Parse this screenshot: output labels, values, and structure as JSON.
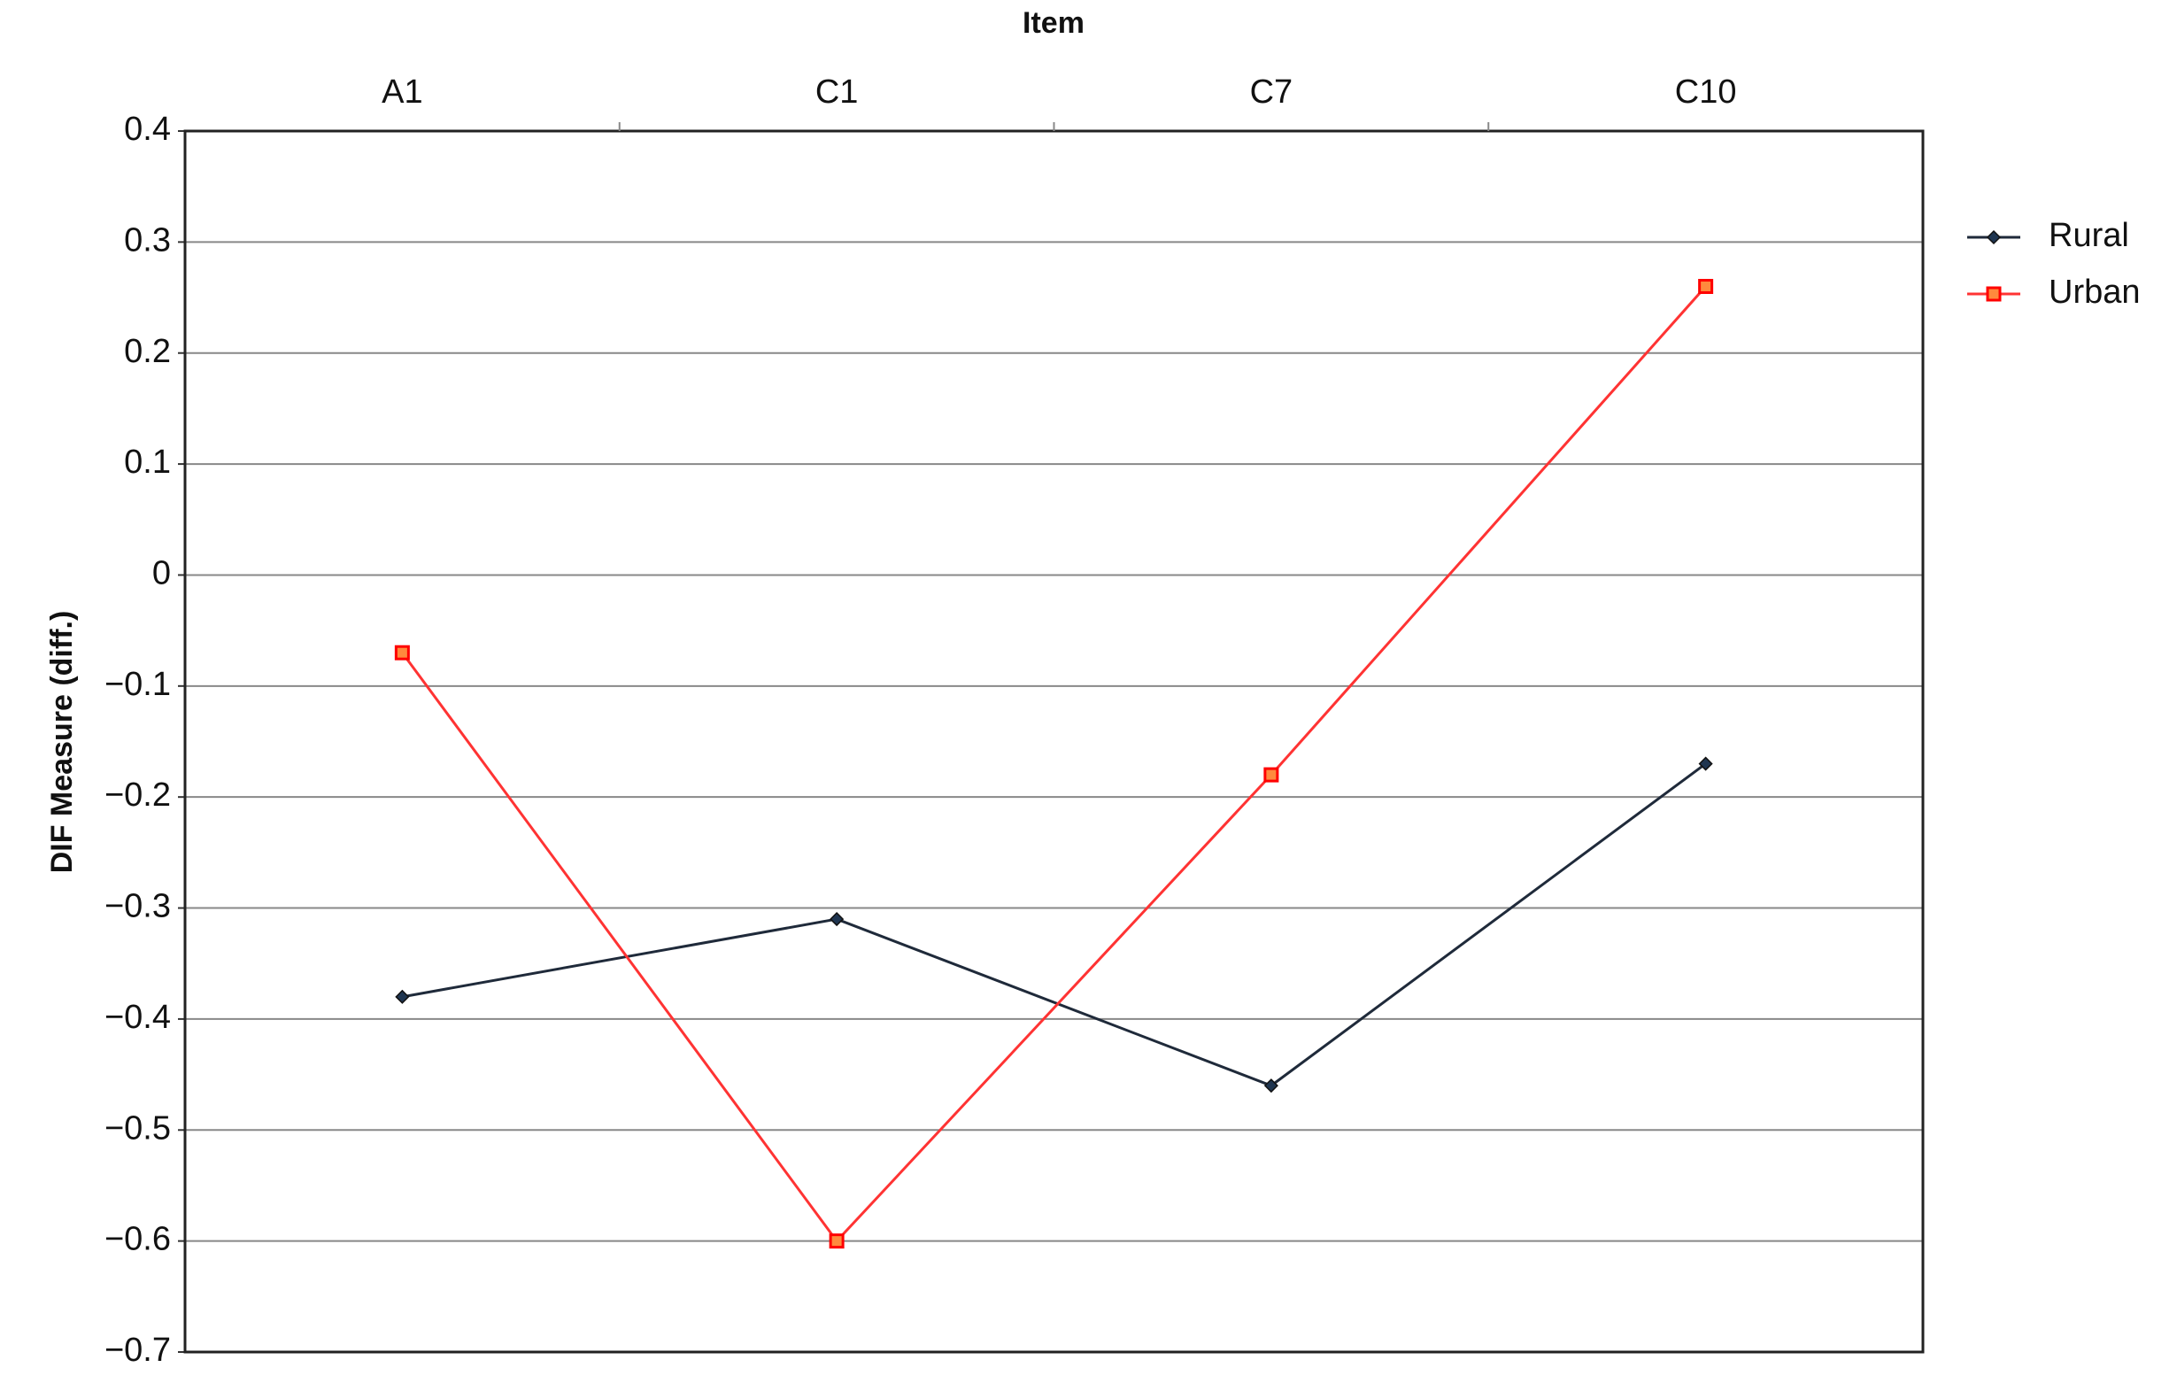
{
  "chart_data": {
    "type": "line",
    "x_label": "Item",
    "y_label": "DIF Measure (diff.)",
    "categories": [
      "A1",
      "C1",
      "C7",
      "C10"
    ],
    "series": [
      {
        "name": "Rural",
        "color": "#1f2a3a",
        "values": [
          -0.38,
          -0.31,
          -0.46,
          -0.17
        ]
      },
      {
        "name": "Urban",
        "color": "#ff3333",
        "values": [
          -0.07,
          -0.6,
          -0.18,
          0.26
        ]
      }
    ],
    "ylim": [
      -0.7,
      0.4
    ],
    "yticks": [
      {
        "value": -0.7,
        "label": "−0.7"
      },
      {
        "value": -0.6,
        "label": "−0.6"
      },
      {
        "value": -0.5,
        "label": "−0.5"
      },
      {
        "value": -0.4,
        "label": "−0.4"
      },
      {
        "value": -0.3,
        "label": "−0.3"
      },
      {
        "value": -0.2,
        "label": "−0.2"
      },
      {
        "value": -0.1,
        "label": "−0.1"
      },
      0,
      0.1,
      0.2,
      0.3,
      0.4
    ],
    "grid": true,
    "legend": "right"
  }
}
